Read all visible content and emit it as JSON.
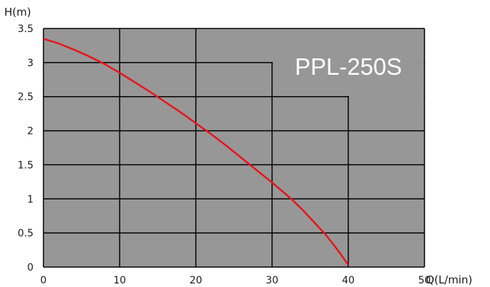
{
  "chart_data": {
    "type": "line",
    "title": "",
    "annotation": "PPL-250S",
    "xlabel": "Q(L/min)",
    "ylabel": "H(m)",
    "xlim": [
      0,
      50
    ],
    "ylim": [
      0,
      3.5
    ],
    "x_ticks": [
      "0",
      "10",
      "20",
      "30",
      "40",
      "50"
    ],
    "y_ticks": [
      "0",
      "0.5",
      "1",
      "1.5",
      "2",
      "2.5",
      "3",
      "3.5"
    ],
    "grid": true,
    "plot_background": "#979797",
    "grid_color": "#000000",
    "series": [
      {
        "color": "#e8141b",
        "x": [
          0,
          2,
          4,
          6,
          8,
          10,
          12,
          14,
          16,
          18,
          20,
          22,
          24,
          26,
          28,
          30,
          32,
          33,
          34,
          35,
          36,
          37,
          38,
          39,
          40
        ],
        "y": [
          3.35,
          3.28,
          3.19,
          3.09,
          2.98,
          2.85,
          2.71,
          2.57,
          2.42,
          2.27,
          2.11,
          1.95,
          1.78,
          1.6,
          1.42,
          1.24,
          1.05,
          0.95,
          0.84,
          0.72,
          0.6,
          0.48,
          0.34,
          0.19,
          0.03
        ]
      }
    ]
  }
}
